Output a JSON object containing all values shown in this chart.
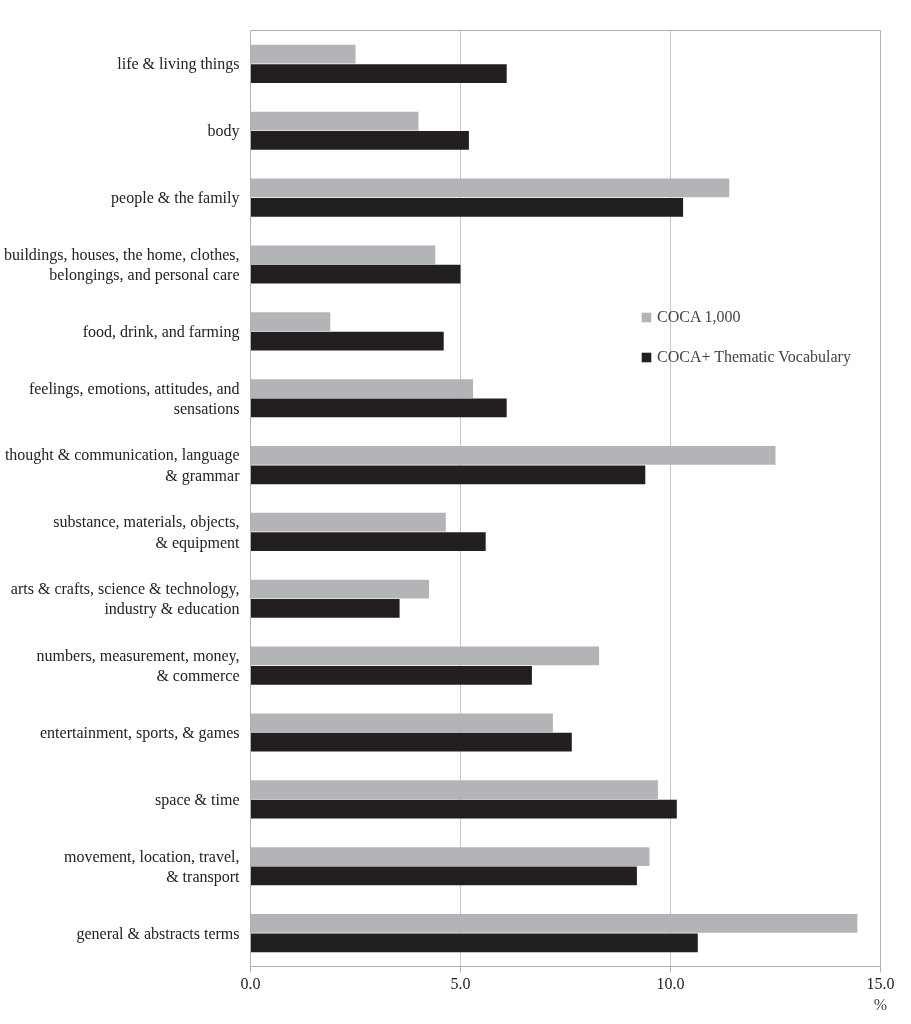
{
  "chart_data": {
    "type": "bar",
    "orientation": "horizontal",
    "xlabel": "%",
    "categories": [
      "life & living things",
      "body",
      "people & the family",
      "buildings, houses, the home, clothes,\nbelongings, and personal care",
      "food, drink, and farming",
      "feelings, emotions, attitudes, and\nsensations",
      "thought & communication, language\n& grammar",
      "substance, materials, objects,\n& equipment",
      "arts & crafts, science & technology,\nindustry & education",
      "numbers, measurement, money,\n& commerce",
      "entertainment, sports, & games",
      "space & time",
      "movement, location, travel,\n& transport",
      "general & abstracts terms"
    ],
    "series": [
      {
        "name": "COCA 1,000",
        "color": "#b3b4b7",
        "values": [
          2.5,
          4.0,
          11.4,
          4.4,
          1.9,
          5.3,
          12.5,
          4.65,
          4.25,
          8.3,
          7.2,
          9.7,
          9.5,
          14.45
        ]
      },
      {
        "name": "COCA+ Thematic Vocabulary",
        "color": "#231f20",
        "values": [
          6.1,
          5.2,
          10.3,
          5.0,
          4.6,
          6.1,
          9.4,
          5.6,
          3.55,
          6.7,
          7.65,
          10.15,
          9.2,
          10.65
        ]
      }
    ],
    "xlim": [
      0,
      15
    ],
    "xticks": [
      {
        "value": 0,
        "label": "0.0"
      },
      {
        "value": 5,
        "label": "5.0"
      },
      {
        "value": 10,
        "label": "10.0"
      },
      {
        "value": 15,
        "label": "15.0"
      }
    ],
    "grid": "x",
    "legend": "right"
  }
}
